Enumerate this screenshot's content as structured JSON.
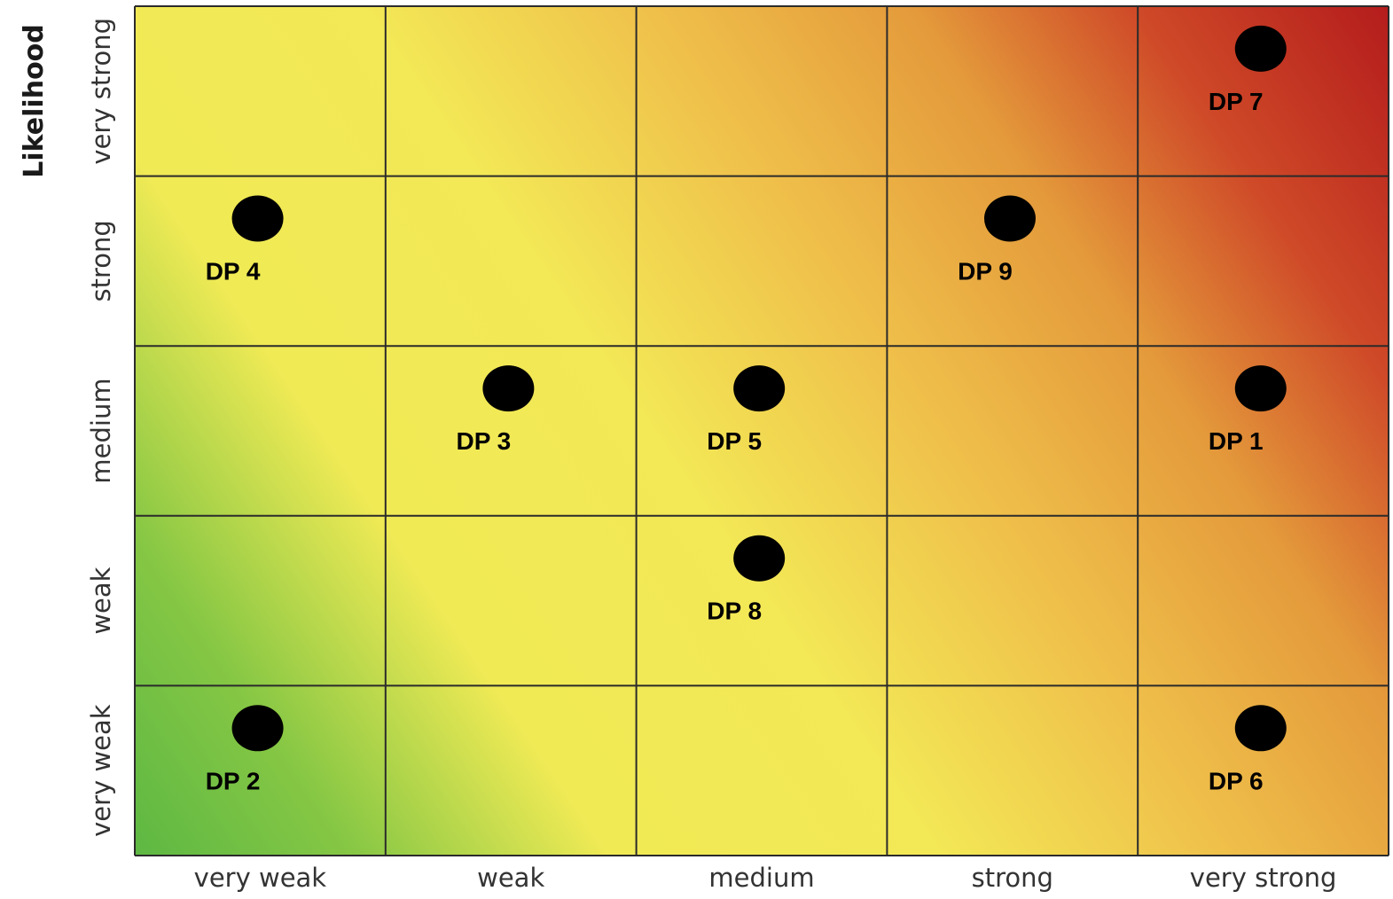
{
  "chart_data": {
    "type": "scatter",
    "title": "",
    "xlabel": "",
    "ylabel": "Likelihood",
    "categories_x": [
      "very weak",
      "weak",
      "medium",
      "strong",
      "very strong"
    ],
    "categories_y": [
      "very weak",
      "weak",
      "medium",
      "strong",
      "very strong"
    ],
    "grid": true,
    "background": "risk heatmap gradient: green (low-low) to yellow to orange to red (high-high)",
    "colors": {
      "green": "#6dbf45",
      "yellow": "#f2ea55",
      "orange": "#e8a340",
      "red": "#b81e1e",
      "marker": "#000000",
      "gridline": "#2b2b2b"
    },
    "points": [
      {
        "label": "DP 1",
        "x": "very strong",
        "y": "medium"
      },
      {
        "label": "DP 2",
        "x": "very weak",
        "y": "very weak"
      },
      {
        "label": "DP 3",
        "x": "weak",
        "y": "medium"
      },
      {
        "label": "DP 4",
        "x": "very weak",
        "y": "strong"
      },
      {
        "label": "DP 5",
        "x": "medium",
        "y": "medium"
      },
      {
        "label": "DP 6",
        "x": "very strong",
        "y": "very weak"
      },
      {
        "label": "DP 7",
        "x": "very strong",
        "y": "very strong"
      },
      {
        "label": "DP 8",
        "x": "medium",
        "y": "weak"
      },
      {
        "label": "DP 9",
        "x": "strong",
        "y": "strong"
      }
    ]
  }
}
